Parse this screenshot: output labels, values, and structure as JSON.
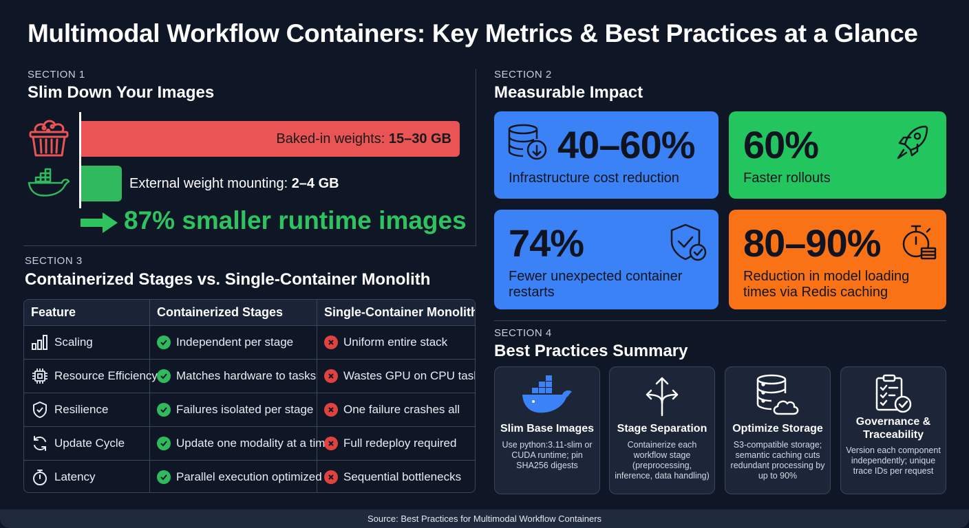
{
  "title": "Multimodal Workflow Containers: Key Metrics & Best Practices at a Glance",
  "section1": {
    "label": "SECTION 1",
    "title": "Slim Down Your Images",
    "bar_red_text": "Baked-in weights: ",
    "bar_red_value": "15–30 GB",
    "bar_green_text": "External weight mounting: ",
    "bar_green_value": "2–4 GB",
    "result": "87% smaller runtime images",
    "colors": {
      "red": "#ea5455",
      "green": "#2fbb5d"
    }
  },
  "section2": {
    "label": "SECTION 2",
    "title": "Measurable Impact",
    "cards": [
      {
        "value": "40–60%",
        "desc": "Infrastructure cost reduction",
        "color": "#3b82f6",
        "icon": "database-download-icon"
      },
      {
        "value": "60%",
        "desc": "Faster rollouts",
        "color": "#22c55e",
        "icon": "rocket-icon"
      },
      {
        "value": "74%",
        "desc": "Fewer unexpected container restarts",
        "color": "#3b82f6",
        "icon": "shield-check-icon"
      },
      {
        "value": "80–90%",
        "desc": "Reduction in model loading times via Redis caching",
        "color": "#f97316",
        "icon": "stopwatch-stack-icon"
      }
    ]
  },
  "section3": {
    "label": "SECTION 3",
    "title": "Containerized Stages vs. Single-Container Monolith",
    "headers": [
      "Feature",
      "Containerized Stages",
      "Single-Container Monolith"
    ],
    "rows": [
      {
        "feature": "Scaling",
        "icon": "bar-chart-icon",
        "containerized": "Independent per stage",
        "monolith": "Uniform entire stack"
      },
      {
        "feature": "Resource Efficiency",
        "icon": "chip-icon",
        "containerized": "Matches hardware to tasks",
        "monolith": "Wastes GPU on CPU tasks"
      },
      {
        "feature": "Resilience",
        "icon": "shield-icon",
        "containerized": "Failures isolated per stage",
        "monolith": "One failure crashes all"
      },
      {
        "feature": "Update Cycle",
        "icon": "refresh-icon",
        "containerized": "Update one modality at a time",
        "monolith": "Full redeploy required"
      },
      {
        "feature": "Latency",
        "icon": "stopwatch-icon",
        "containerized": "Parallel execution optimized",
        "monolith": "Sequential bottlenecks"
      }
    ]
  },
  "section4": {
    "label": "SECTION 4",
    "title": "Best Practices Summary",
    "items": [
      {
        "title": "Slim Base Images",
        "text": "Use python:3.11-slim or CUDA runtime; pin SHA256 digests",
        "icon": "docker-whale-icon"
      },
      {
        "title": "Stage Separation",
        "text": "Containerize each workflow stage (preprocessing, inference, data handling)",
        "icon": "split-arrows-icon"
      },
      {
        "title": "Optimize Storage",
        "text": "S3-compatible storage; semantic caching cuts redundant processing by up to 90%",
        "icon": "database-cloud-icon"
      },
      {
        "title": "Governance & Traceability",
        "text": "Version each component independently; unique trace IDs per request",
        "icon": "clipboard-check-icon"
      }
    ]
  },
  "footer": "Source: Best Practices for Multimodal Workflow Containers"
}
